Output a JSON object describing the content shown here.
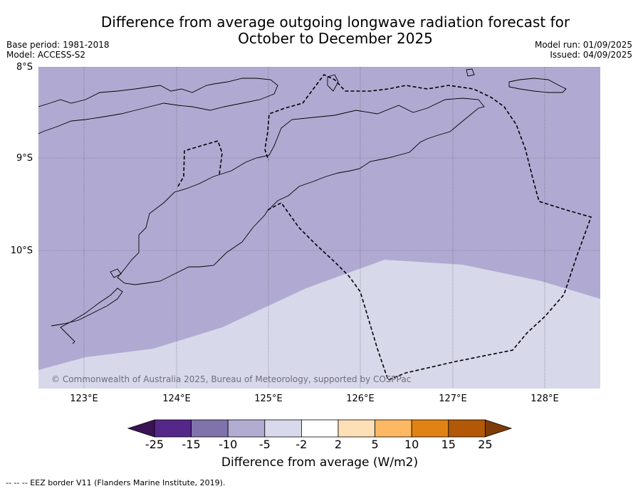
{
  "title_line1": "Difference from average outgoing longwave radiation forecast for",
  "title_line2": "October to December 2025",
  "base_period": "Base period: 1981-2018",
  "model": "Model: ACCESS-S2",
  "model_run": "Model run: 01/09/2025",
  "issued": "Issued: 04/09/2025",
  "lat_labels": [
    "8°S",
    "9°S",
    "10°S"
  ],
  "lon_labels": [
    "123°E",
    "124°E",
    "125°E",
    "126°E",
    "127°E",
    "128°E"
  ],
  "copyright": "© Commonwealth of Australia 2025, Bureau of Meteorology, supported by COSPPac",
  "colorbar": {
    "ticks": [
      "-25",
      "-15",
      "-10",
      "-5",
      "-2",
      "2",
      "5",
      "10",
      "15",
      "25"
    ],
    "label": "Difference from average (W/m2)",
    "colors": [
      "#3b1455",
      "#542788",
      "#8073ac",
      "#b2abd2",
      "#d8daeb",
      "#ffffff",
      "#fee0b6",
      "#fdb863",
      "#e08214",
      "#b35806",
      "#7f3b08"
    ]
  },
  "footer": "--  --  -- EEZ border V11 (Flanders Marine Institute, 2019).",
  "map_legend": {
    "region_colors": {
      "-10_to_-5": "#b0aad2",
      "-5_to_-2": "#d7d8ea"
    }
  }
}
